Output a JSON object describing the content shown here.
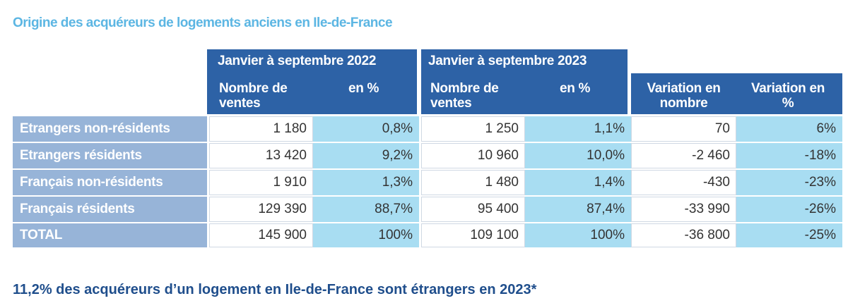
{
  "title": "Origine des acquéreurs de logements anciens en Ile-de-France",
  "table": {
    "groups": [
      "Janvier à septembre 2022",
      "Janvier à septembre 2023"
    ],
    "subheaders": [
      "Nombre de ventes",
      "en %",
      "Nombre de ventes",
      "en %",
      "Variation en nombre",
      "Variation en %"
    ],
    "rows": [
      [
        "Etrangers non-résidents",
        "1 180",
        "0,8%",
        "1 250",
        "1,1%",
        "70",
        "6%"
      ],
      [
        "Etrangers résidents",
        "13 420",
        "9,2%",
        "10 960",
        "10,0%",
        "-2 460",
        "-18%"
      ],
      [
        "Français non-résidents",
        "1 910",
        "1,3%",
        "1 480",
        "1,4%",
        "-430",
        "-23%"
      ],
      [
        "Français résidents",
        "129 390",
        "88,7%",
        "95 400",
        "87,4%",
        "-33 990",
        "-26%"
      ],
      [
        "TOTAL",
        "145 900",
        "100%",
        "109 100",
        "100%",
        "-36 800",
        "-25%"
      ]
    ]
  },
  "footer": "11,2% des acquéreurs d’un logement en Ile-de-France sont étrangers en 2023*"
}
